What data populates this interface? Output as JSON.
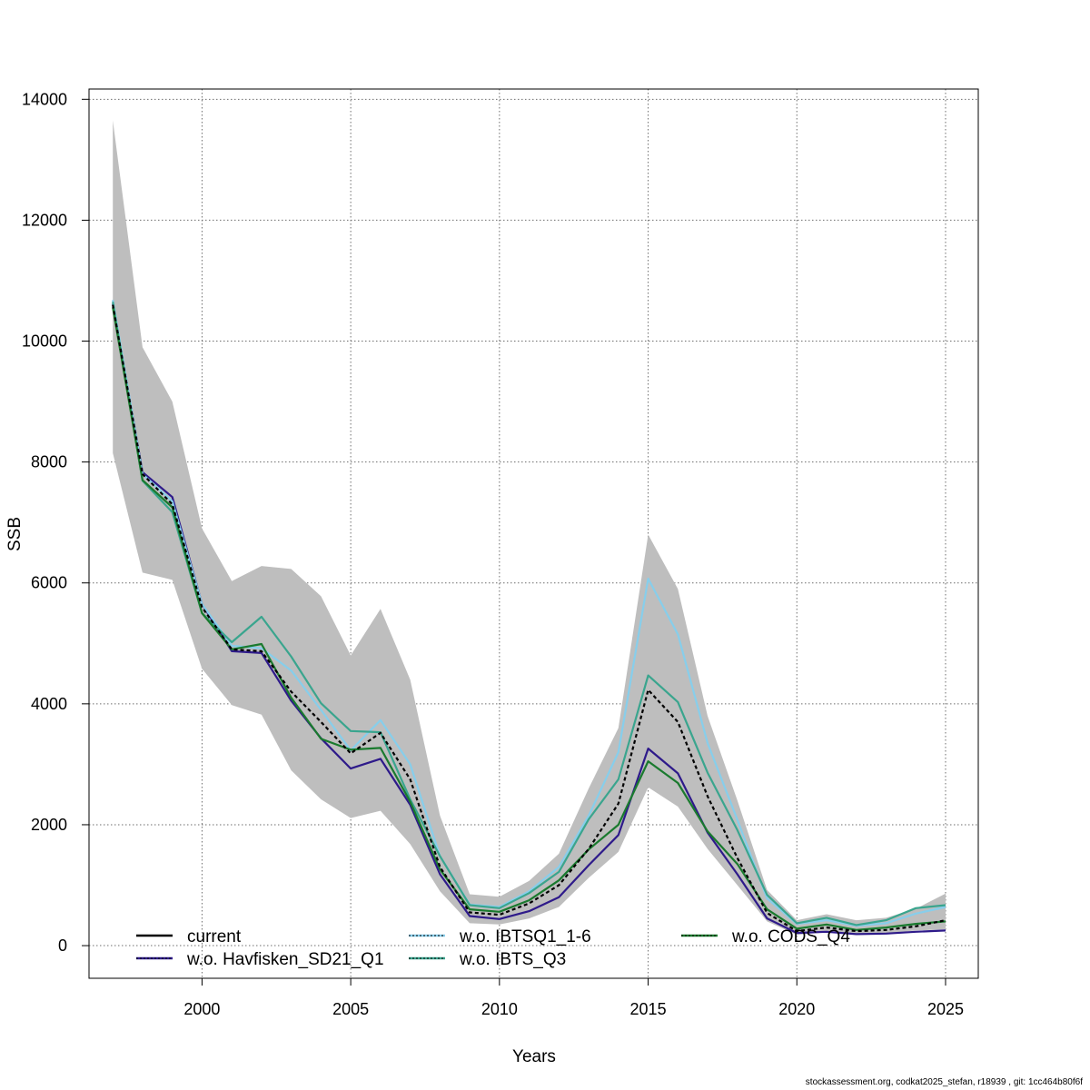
{
  "chart_data": {
    "type": "line",
    "xlabel": "Years",
    "ylabel": "SSB",
    "xlim": [
      1996.2,
      2026.1
    ],
    "ylim": [
      -540,
      14170
    ],
    "x_ticks": [
      2000,
      2005,
      2010,
      2015,
      2020,
      2025
    ],
    "y_ticks": [
      0,
      2000,
      4000,
      6000,
      8000,
      10000,
      12000,
      14000
    ],
    "grid": true,
    "legend_position": "bottom",
    "x": [
      1997,
      1998,
      1999,
      2000,
      2001,
      2002,
      2003,
      2004,
      2005,
      2006,
      2007,
      2008,
      2009,
      2010,
      2011,
      2012,
      2013,
      2014,
      2015,
      2016,
      2017,
      2018,
      2019,
      2020,
      2021,
      2022,
      2023,
      2024,
      2025
    ],
    "confidence_band": {
      "color": "#bebebe",
      "upper": [
        13650,
        9900,
        9000,
        6900,
        6030,
        6280,
        6230,
        5780,
        4800,
        5570,
        4400,
        2150,
        850,
        810,
        1070,
        1520,
        2600,
        3600,
        6800,
        5900,
        3800,
        2400,
        920,
        420,
        520,
        420,
        460,
        610,
        860
      ],
      "lower": [
        8150,
        6170,
        6050,
        4580,
        3980,
        3820,
        2900,
        2420,
        2110,
        2230,
        1680,
        900,
        370,
        350,
        450,
        640,
        1120,
        1550,
        2620,
        2300,
        1600,
        1000,
        400,
        180,
        220,
        190,
        200,
        250,
        270
      ]
    },
    "series": [
      {
        "name": "current",
        "color": "#000000",
        "dash": "",
        "values": [
          10600,
          7800,
          7300,
          5600,
          4900,
          4870,
          4200,
          3700,
          3180,
          3520,
          2750,
          1300,
          550,
          510,
          700,
          1000,
          1600,
          2350,
          4230,
          3700,
          2470,
          1450,
          540,
          240,
          300,
          240,
          260,
          320,
          420
        ]
      },
      {
        "name": "w.o. Havfisken_SD21_Q1",
        "color": "#2e1a8a",
        "dash": "",
        "values": [
          10620,
          7830,
          7420,
          5650,
          4870,
          4840,
          4050,
          3430,
          2930,
          3090,
          2330,
          1180,
          490,
          440,
          570,
          800,
          1330,
          1830,
          3260,
          2850,
          1870,
          1180,
          450,
          210,
          230,
          190,
          200,
          230,
          250
        ]
      },
      {
        "name": "w.o. IBTSQ1_1-6",
        "color": "#87ceeb",
        "dash": "",
        "values": [
          10680,
          7800,
          7350,
          5650,
          4960,
          4920,
          4550,
          3900,
          3230,
          3730,
          3000,
          1480,
          680,
          640,
          900,
          1300,
          2150,
          3200,
          6070,
          5150,
          3350,
          2080,
          780,
          360,
          420,
          330,
          370,
          530,
          640
        ]
      },
      {
        "name": "w.o. IBTS_Q3",
        "color": "#3aa58e",
        "dash": "",
        "values": [
          10650,
          7690,
          7170,
          5500,
          5020,
          5440,
          4780,
          4010,
          3550,
          3530,
          2420,
          1480,
          670,
          620,
          870,
          1220,
          2090,
          2750,
          4470,
          4030,
          2860,
          1910,
          840,
          370,
          460,
          340,
          420,
          620,
          670
        ]
      },
      {
        "name": "w.o. CODS_Q4",
        "color": "#1a7a2e",
        "dash": "",
        "values": [
          10560,
          7700,
          7250,
          5500,
          4900,
          4990,
          4100,
          3420,
          3240,
          3270,
          2380,
          1260,
          600,
          560,
          750,
          1080,
          1590,
          2000,
          3050,
          2690,
          1890,
          1350,
          600,
          280,
          350,
          260,
          300,
          360,
          400
        ]
      }
    ]
  },
  "legend": {
    "items": [
      {
        "label": "current",
        "color": "#000000"
      },
      {
        "label": "w.o. Havfisken_SD21_Q1",
        "color": "#2e1a8a"
      },
      {
        "label": "w.o. IBTSQ1_1-6",
        "color": "#87ceeb"
      },
      {
        "label": "w.o. IBTS_Q3",
        "color": "#3aa58e"
      },
      {
        "label": "w.o. CODS_Q4",
        "color": "#1a7a2e"
      }
    ]
  },
  "footer": {
    "text": "stockassessment.org, codkat2025_stefan, r18939 , git: 1cc464b80f6f"
  }
}
